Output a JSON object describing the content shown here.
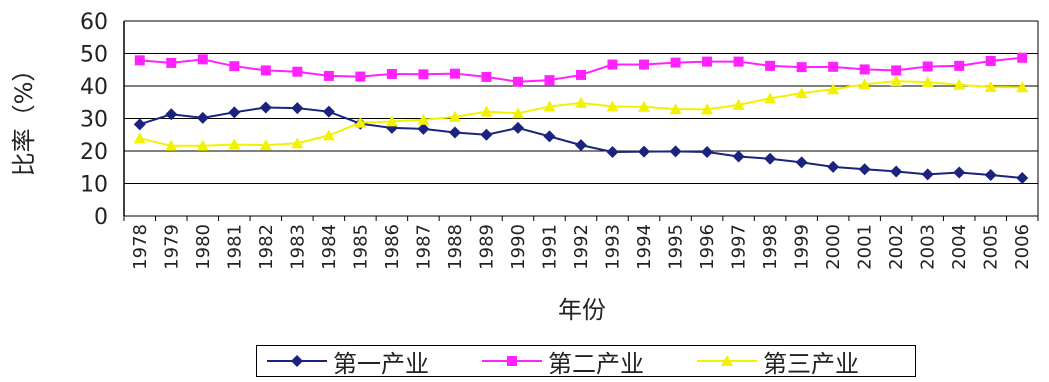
{
  "chart_data": {
    "type": "line",
    "xlabel": "年份",
    "ylabel": "比率（%）",
    "ylim": [
      0,
      60
    ],
    "yticks": [
      0,
      10,
      20,
      30,
      40,
      50,
      60
    ],
    "grid": true,
    "legend_position": "bottom",
    "categories": [
      "1978",
      "1979",
      "1980",
      "1981",
      "1982",
      "1983",
      "1984",
      "1985",
      "1986",
      "1987",
      "1988",
      "1989",
      "1990",
      "1991",
      "1992",
      "1993",
      "1994",
      "1995",
      "1996",
      "1997",
      "1998",
      "1999",
      "2000",
      "2001",
      "2002",
      "2003",
      "2004",
      "2005",
      "2006"
    ],
    "series": [
      {
        "name": "第一产业",
        "color": "#1a237e",
        "marker": "diamond",
        "values": [
          28.2,
          31.3,
          30.2,
          31.9,
          33.4,
          33.2,
          32.1,
          28.4,
          27.1,
          26.8,
          25.7,
          25.0,
          27.1,
          24.5,
          21.8,
          19.7,
          19.8,
          19.9,
          19.7,
          18.3,
          17.6,
          16.5,
          15.1,
          14.4,
          13.7,
          12.8,
          13.4,
          12.6,
          11.7
        ]
      },
      {
        "name": "第二产业",
        "color": "#ff22ff",
        "marker": "square",
        "values": [
          47.9,
          47.1,
          48.2,
          46.1,
          44.8,
          44.4,
          43.1,
          42.9,
          43.7,
          43.6,
          43.8,
          42.8,
          41.3,
          41.8,
          43.4,
          46.6,
          46.6,
          47.2,
          47.5,
          47.5,
          46.2,
          45.8,
          45.9,
          45.1,
          44.8,
          46.0,
          46.2,
          47.7,
          48.7
        ]
      },
      {
        "name": "第三产业",
        "color": "#f2f200",
        "marker": "triangle",
        "values": [
          23.9,
          21.6,
          21.6,
          22.0,
          21.8,
          22.4,
          24.8,
          28.7,
          29.1,
          29.6,
          30.5,
          32.1,
          31.6,
          33.7,
          34.8,
          33.7,
          33.6,
          32.9,
          32.8,
          34.2,
          36.2,
          37.8,
          39.0,
          40.5,
          41.5,
          41.2,
          40.4,
          39.7,
          39.6
        ]
      }
    ]
  },
  "colors": {
    "grid": "#000000",
    "axis": "#000000"
  }
}
